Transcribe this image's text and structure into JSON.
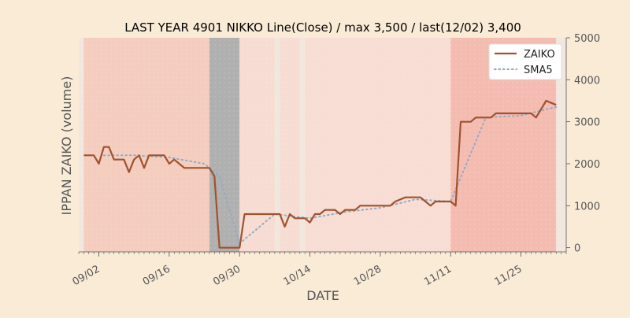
{
  "chart_data": {
    "type": "line",
    "title": "LAST YEAR 4901 NIKKO Line(Close) / max 3,500 / last(12/02) 3,400",
    "xlabel": "DATE",
    "ylabel": "IPPAN ZAIKO (volume)",
    "ylim": [
      -100,
      5000
    ],
    "yticks": [
      0,
      1000,
      2000,
      3000,
      4000,
      5000
    ],
    "ytick_labels": [
      "0",
      "1000",
      "2000",
      "3000",
      "4000",
      "5000"
    ],
    "y_axis_side": "right",
    "xlim": [
      "2023-08-29",
      "2023-12-04"
    ],
    "xticks": [
      "2023-09-02",
      "2023-09-16",
      "2023-09-30",
      "2023-10-14",
      "2023-10-28",
      "2023-11-11",
      "2023-11-25"
    ],
    "xtick_labels": [
      "09/02",
      "09/16",
      "09/30",
      "10/14",
      "10/28",
      "11/11",
      "11/25"
    ],
    "grid": false,
    "legend": "top-right",
    "series": [
      {
        "name": "ZAIKO",
        "color": "#a0522d",
        "style": "solid",
        "x": [
          "2023-08-30",
          "2023-08-31",
          "2023-09-01",
          "2023-09-02",
          "2023-09-03",
          "2023-09-04",
          "2023-09-05",
          "2023-09-06",
          "2023-09-07",
          "2023-09-08",
          "2023-09-09",
          "2023-09-10",
          "2023-09-11",
          "2023-09-12",
          "2023-09-13",
          "2023-09-14",
          "2023-09-15",
          "2023-09-16",
          "2023-09-17",
          "2023-09-18",
          "2023-09-19",
          "2023-09-20",
          "2023-09-21",
          "2023-09-22",
          "2023-09-23",
          "2023-09-24",
          "2023-09-25",
          "2023-09-26",
          "2023-09-30",
          "2023-10-01",
          "2023-10-07",
          "2023-10-08",
          "2023-10-09",
          "2023-10-10",
          "2023-10-11",
          "2023-10-12",
          "2023-10-13",
          "2023-10-14",
          "2023-10-15",
          "2023-10-16",
          "2023-10-17",
          "2023-10-18",
          "2023-10-19",
          "2023-10-20",
          "2023-10-21",
          "2023-10-22",
          "2023-10-23",
          "2023-10-24",
          "2023-10-25",
          "2023-10-26",
          "2023-10-27",
          "2023-10-28",
          "2023-10-29",
          "2023-10-30",
          "2023-10-31",
          "2023-11-02",
          "2023-11-03",
          "2023-11-04",
          "2023-11-05",
          "2023-11-06",
          "2023-11-07",
          "2023-11-08",
          "2023-11-09",
          "2023-11-10",
          "2023-11-11",
          "2023-11-12",
          "2023-11-13",
          "2023-11-14",
          "2023-11-15",
          "2023-11-16",
          "2023-11-17",
          "2023-11-18",
          "2023-11-19",
          "2023-11-20",
          "2023-11-21",
          "2023-11-22",
          "2023-11-23",
          "2023-11-24",
          "2023-11-25",
          "2023-11-26",
          "2023-11-27",
          "2023-11-28",
          "2023-11-29",
          "2023-11-30",
          "2023-12-02"
        ],
        "y": [
          2200,
          2200,
          2200,
          2000,
          2400,
          2400,
          2100,
          2100,
          2100,
          1800,
          2100,
          2200,
          1900,
          2200,
          2200,
          2200,
          2200,
          2000,
          2100,
          2000,
          1900,
          1900,
          1900,
          1900,
          1900,
          1900,
          1700,
          0,
          0,
          800,
          800,
          800,
          500,
          800,
          700,
          700,
          700,
          600,
          800,
          800,
          900,
          900,
          900,
          800,
          900,
          900,
          900,
          1000,
          1000,
          1000,
          1000,
          1000,
          1000,
          1000,
          1100,
          1200,
          1200,
          1200,
          1200,
          1100,
          1000,
          1100,
          1100,
          1100,
          1100,
          1000,
          3000,
          3000,
          3000,
          3100,
          3100,
          3100,
          3100,
          3200,
          3200,
          3200,
          3200,
          3200,
          3200,
          3200,
          3200,
          3100,
          3300,
          3500,
          3400
        ]
      },
      {
        "name": "SMA5",
        "color": "#92abc4",
        "style": "dotted",
        "x": [
          "2023-09-03",
          "2023-09-09",
          "2023-09-16",
          "2023-09-23",
          "2023-09-26",
          "2023-09-30",
          "2023-10-07",
          "2023-10-14",
          "2023-10-21",
          "2023-10-28",
          "2023-11-04",
          "2023-11-11",
          "2023-11-18",
          "2023-11-25",
          "2023-12-02"
        ],
        "y": [
          2200,
          2200,
          2150,
          2000,
          1700,
          100,
          800,
          700,
          850,
          950,
          1150,
          1100,
          3100,
          3150,
          3350
        ]
      }
    ]
  },
  "background_bands": [
    {
      "from": "2023-08-29",
      "to": "2023-08-30",
      "color": "#f2e7df"
    },
    {
      "from": "2023-08-30",
      "to": "2023-09-24",
      "color": "#f4cdbf"
    },
    {
      "from": "2023-09-24",
      "to": "2023-09-30",
      "color": "#b0b0b0"
    },
    {
      "from": "2023-09-30",
      "to": "2023-10-07",
      "color": "#f6dcd2"
    },
    {
      "from": "2023-10-07",
      "to": "2023-10-08",
      "color": "#f2e7df"
    },
    {
      "from": "2023-10-08",
      "to": "2023-10-12",
      "color": "#f6dcd2"
    },
    {
      "from": "2023-10-12",
      "to": "2023-10-13",
      "color": "#f2e7df"
    },
    {
      "from": "2023-10-13",
      "to": "2023-11-11",
      "color": "#f7ddd3"
    },
    {
      "from": "2023-11-11",
      "to": "2023-12-02",
      "color": "#f4bcb1"
    },
    {
      "from": "2023-12-02",
      "to": "2023-12-04",
      "color": "#f2e7df"
    }
  ]
}
